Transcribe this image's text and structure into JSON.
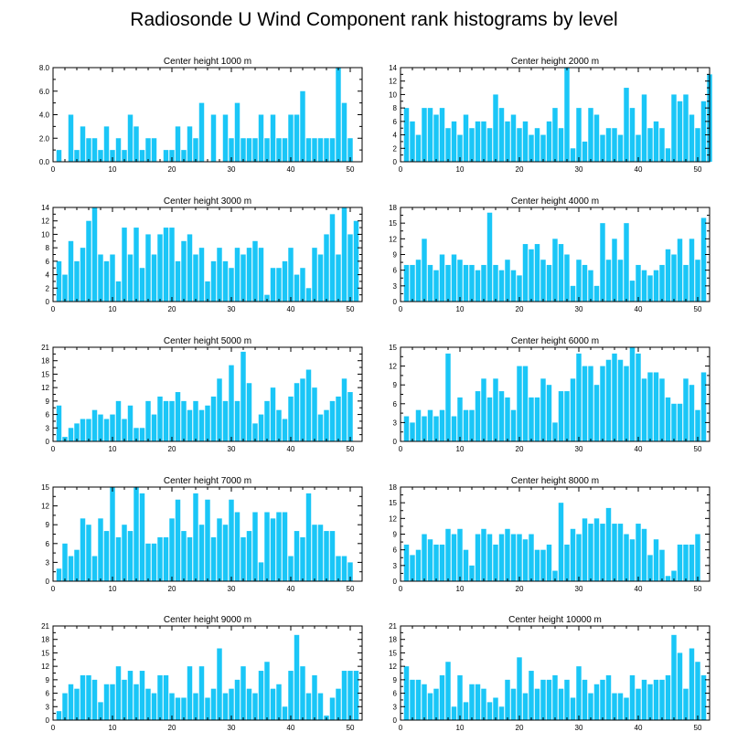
{
  "title": "Radiosonde U Wind Component rank histograms by level",
  "colors": {
    "bar": "#1AC6F7",
    "axis": "#000000",
    "background": "#ffffff"
  },
  "chart_data": [
    {
      "type": "bar",
      "title": "Center height 1000 m",
      "xlim": [
        0,
        52
      ],
      "ylim": [
        0,
        8
      ],
      "xticks": [
        0,
        10,
        20,
        30,
        40,
        50
      ],
      "xtick_labels": [
        "0",
        "10",
        "20",
        "30",
        "40",
        "50"
      ],
      "yticks": [
        0,
        2,
        4,
        6,
        8
      ],
      "ytick_labels": [
        "0.0",
        "2.0",
        "4.0",
        "6.0",
        "8.0"
      ],
      "values": [
        0,
        1,
        0,
        4,
        1,
        3,
        2,
        2,
        1,
        3,
        1,
        2,
        1,
        4,
        3,
        1,
        2,
        2,
        0,
        1,
        1,
        3,
        1,
        3,
        2,
        5,
        0,
        4,
        0,
        4,
        2,
        5,
        2,
        2,
        2,
        4,
        2,
        4,
        2,
        2,
        4,
        4,
        6,
        2,
        2,
        2,
        2,
        2,
        8,
        5,
        2
      ]
    },
    {
      "type": "bar",
      "title": "Center height 2000 m",
      "xlim": [
        0,
        52
      ],
      "ylim": [
        0,
        14
      ],
      "xticks": [
        0,
        10,
        20,
        30,
        40,
        50
      ],
      "xtick_labels": [
        "0",
        "10",
        "20",
        "30",
        "40",
        "50"
      ],
      "yticks": [
        0,
        2,
        4,
        6,
        8,
        10,
        12,
        14
      ],
      "ytick_labels": [
        "0",
        "2",
        "4",
        "6",
        "8",
        "10",
        "12",
        "14"
      ],
      "values": [
        0,
        8,
        6,
        4,
        8,
        8,
        7,
        8,
        5,
        6,
        4,
        7,
        5,
        6,
        6,
        5,
        10,
        8,
        6,
        7,
        5,
        6,
        4,
        5,
        4,
        6,
        8,
        5,
        14,
        2,
        8,
        3,
        8,
        7,
        4,
        5,
        5,
        4,
        11,
        8,
        4,
        10,
        5,
        6,
        5,
        2,
        10,
        9,
        10,
        7,
        5,
        9,
        13
      ]
    },
    {
      "type": "bar",
      "title": "Center height 3000 m",
      "xlim": [
        0,
        52
      ],
      "ylim": [
        0,
        14
      ],
      "xticks": [
        0,
        10,
        20,
        30,
        40,
        50
      ],
      "xtick_labels": [
        "0",
        "10",
        "20",
        "30",
        "40",
        "50"
      ],
      "yticks": [
        0,
        2,
        4,
        6,
        8,
        10,
        12,
        14
      ],
      "ytick_labels": [
        "0",
        "2",
        "4",
        "6",
        "8",
        "10",
        "12",
        "14"
      ],
      "values": [
        0,
        6,
        4,
        9,
        6,
        8,
        12,
        14,
        7,
        6,
        7,
        3,
        11,
        7,
        11,
        5,
        10,
        7,
        10,
        11,
        11,
        6,
        9,
        10,
        7,
        8,
        3,
        6,
        8,
        6,
        5,
        8,
        7,
        8,
        9,
        8,
        1,
        5,
        5,
        6,
        8,
        4,
        5,
        2,
        8,
        7,
        10,
        13,
        7,
        14,
        10,
        12
      ]
    },
    {
      "type": "bar",
      "title": "Center height 4000 m",
      "xlim": [
        0,
        52
      ],
      "ylim": [
        0,
        18
      ],
      "xticks": [
        0,
        10,
        20,
        30,
        40,
        50
      ],
      "xtick_labels": [
        "0",
        "10",
        "20",
        "30",
        "40",
        "50"
      ],
      "yticks": [
        0,
        3,
        6,
        9,
        12,
        15,
        18
      ],
      "ytick_labels": [
        "0",
        "3",
        "6",
        "9",
        "12",
        "15",
        "18"
      ],
      "values": [
        0,
        7,
        7,
        8,
        12,
        7,
        6,
        9,
        7,
        9,
        8,
        7,
        7,
        6,
        7,
        17,
        7,
        6,
        8,
        6,
        5,
        11,
        10,
        11,
        8,
        7,
        12,
        11,
        9,
        3,
        8,
        7,
        6,
        3,
        15,
        8,
        12,
        8,
        15,
        4,
        7,
        6,
        5,
        6,
        7,
        10,
        9,
        12,
        7,
        12,
        8,
        16
      ]
    },
    {
      "type": "bar",
      "title": "Center height 5000 m",
      "xlim": [
        0,
        52
      ],
      "ylim": [
        0,
        21
      ],
      "xticks": [
        0,
        10,
        20,
        30,
        40,
        50
      ],
      "xtick_labels": [
        "0",
        "10",
        "20",
        "30",
        "40",
        "50"
      ],
      "yticks": [
        0,
        3,
        6,
        9,
        12,
        15,
        18,
        21
      ],
      "ytick_labels": [
        "0",
        "3",
        "6",
        "9",
        "12",
        "15",
        "18",
        "21"
      ],
      "values": [
        0,
        8,
        1,
        3,
        4,
        5,
        5,
        7,
        6,
        5,
        6,
        9,
        5,
        8,
        3,
        3,
        9,
        6,
        10,
        9,
        9,
        11,
        9,
        7,
        9,
        7,
        8,
        10,
        14,
        9,
        17,
        9,
        20,
        13,
        4,
        6,
        9,
        12,
        7,
        5,
        10,
        13,
        14,
        16,
        12,
        6,
        7,
        9,
        10,
        14,
        11
      ]
    },
    {
      "type": "bar",
      "title": "Center height 6000 m",
      "xlim": [
        0,
        52
      ],
      "ylim": [
        0,
        15
      ],
      "xticks": [
        0,
        10,
        20,
        30,
        40,
        50
      ],
      "xtick_labels": [
        "0",
        "10",
        "20",
        "30",
        "40",
        "50"
      ],
      "yticks": [
        0,
        3,
        6,
        9,
        12,
        15
      ],
      "ytick_labels": [
        "0",
        "3",
        "6",
        "9",
        "12",
        "15"
      ],
      "values": [
        0,
        4,
        3,
        5,
        4,
        5,
        4,
        5,
        14,
        4,
        7,
        5,
        5,
        8,
        10,
        7,
        10,
        8,
        7,
        5,
        12,
        12,
        7,
        7,
        10,
        9,
        3,
        8,
        8,
        10,
        14,
        12,
        12,
        9,
        12,
        13,
        14,
        13,
        12,
        15,
        14,
        10,
        11,
        11,
        10,
        7,
        6,
        6,
        10,
        9,
        5,
        11
      ]
    },
    {
      "type": "bar",
      "title": "Center height 7000 m",
      "xlim": [
        0,
        52
      ],
      "ylim": [
        0,
        15
      ],
      "xticks": [
        0,
        10,
        20,
        30,
        40,
        50
      ],
      "xtick_labels": [
        "0",
        "10",
        "20",
        "30",
        "40",
        "50"
      ],
      "yticks": [
        0,
        3,
        6,
        9,
        12,
        15
      ],
      "ytick_labels": [
        "0",
        "3",
        "6",
        "9",
        "12",
        "15"
      ],
      "values": [
        0,
        2,
        6,
        4,
        5,
        10,
        9,
        4,
        10,
        8,
        15,
        7,
        9,
        8,
        15,
        14,
        6,
        6,
        7,
        7,
        10,
        13,
        8,
        7,
        14,
        9,
        13,
        7,
        10,
        9,
        13,
        11,
        7,
        8,
        11,
        3,
        11,
        10,
        11,
        11,
        4,
        8,
        7,
        14,
        9,
        9,
        8,
        8,
        4,
        4,
        3
      ]
    },
    {
      "type": "bar",
      "title": "Center height 8000 m",
      "xlim": [
        0,
        52
      ],
      "ylim": [
        0,
        18
      ],
      "xticks": [
        0,
        10,
        20,
        30,
        40,
        50
      ],
      "xtick_labels": [
        "0",
        "10",
        "20",
        "30",
        "40",
        "50"
      ],
      "yticks": [
        0,
        3,
        6,
        9,
        12,
        15,
        18
      ],
      "ytick_labels": [
        "0",
        "3",
        "6",
        "9",
        "12",
        "15",
        "18"
      ],
      "values": [
        0,
        7,
        5,
        6,
        9,
        8,
        7,
        7,
        10,
        9,
        10,
        6,
        3,
        9,
        10,
        9,
        7,
        9,
        10,
        9,
        9,
        8,
        9,
        6,
        6,
        7,
        2,
        15,
        7,
        10,
        9,
        12,
        11,
        12,
        11,
        14,
        11,
        11,
        9,
        8,
        11,
        10,
        5,
        8,
        6,
        1,
        2,
        7,
        7,
        7,
        9
      ]
    },
    {
      "type": "bar",
      "title": "Center height 9000 m",
      "xlim": [
        0,
        52
      ],
      "ylim": [
        0,
        21
      ],
      "xticks": [
        0,
        10,
        20,
        30,
        40,
        50
      ],
      "xtick_labels": [
        "0",
        "10",
        "20",
        "30",
        "40",
        "50"
      ],
      "yticks": [
        0,
        3,
        6,
        9,
        12,
        15,
        18,
        21
      ],
      "ytick_labels": [
        "0",
        "3",
        "6",
        "9",
        "12",
        "15",
        "18",
        "21"
      ],
      "values": [
        0,
        2,
        6,
        8,
        7,
        10,
        10,
        9,
        4,
        8,
        8,
        12,
        9,
        11,
        8,
        11,
        7,
        6,
        10,
        10,
        6,
        5,
        5,
        12,
        6,
        12,
        5,
        7,
        16,
        6,
        7,
        9,
        12,
        7,
        6,
        11,
        13,
        7,
        8,
        3,
        11,
        19,
        12,
        6,
        10,
        6,
        1,
        5,
        7,
        11,
        11,
        11
      ]
    },
    {
      "type": "bar",
      "title": "Center height 10000 m",
      "xlim": [
        0,
        52
      ],
      "ylim": [
        0,
        21
      ],
      "xticks": [
        0,
        10,
        20,
        30,
        40,
        50
      ],
      "xtick_labels": [
        "0",
        "10",
        "20",
        "30",
        "40",
        "50"
      ],
      "yticks": [
        0,
        3,
        6,
        9,
        12,
        15,
        18,
        21
      ],
      "ytick_labels": [
        "0",
        "3",
        "6",
        "9",
        "12",
        "15",
        "18",
        "21"
      ],
      "values": [
        0,
        12,
        9,
        9,
        8,
        6,
        7,
        10,
        13,
        3,
        10,
        4,
        8,
        8,
        7,
        4,
        5,
        3,
        9,
        7,
        14,
        6,
        11,
        7,
        9,
        9,
        10,
        7,
        9,
        5,
        12,
        9,
        6,
        8,
        9,
        10,
        6,
        6,
        5,
        10,
        7,
        9,
        8,
        9,
        9,
        10,
        19,
        15,
        7,
        16,
        13,
        10
      ]
    }
  ]
}
